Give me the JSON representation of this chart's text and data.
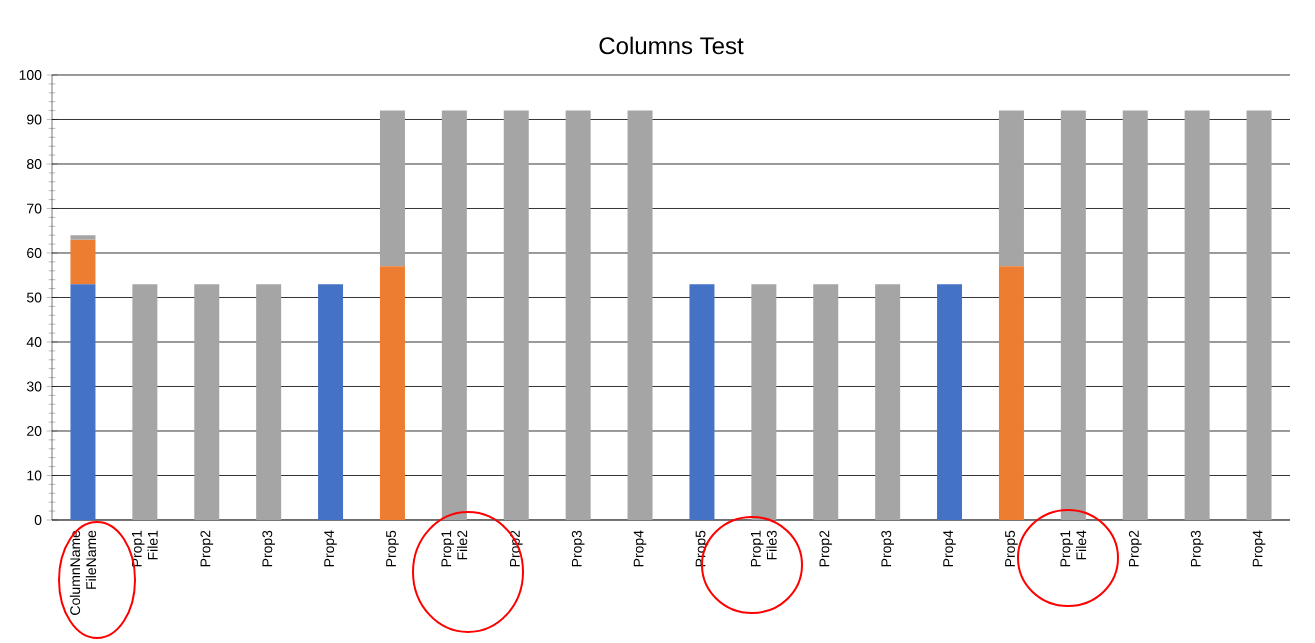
{
  "chart_data": {
    "type": "bar",
    "title": "Columns Test",
    "stacked": true,
    "grid": "y",
    "categories": [
      "ColumnName FileName",
      "Prop1 File1",
      "Prop2",
      "Prop3",
      "Prop4",
      "Prop5",
      "Prop1 File2",
      "Prop2",
      "Prop3",
      "Prop4",
      "Prop5",
      "Prop1 File3",
      "Prop2",
      "Prop3",
      "Prop4",
      "Prop5",
      "Prop1 File4",
      "Prop2",
      "Prop3",
      "Prop4"
    ],
    "series": [
      {
        "color": "#4472c4",
        "values": [
          53,
          0,
          0,
          0,
          53,
          0,
          0,
          0,
          0,
          0,
          53,
          0,
          0,
          0,
          53,
          0,
          0,
          0,
          0,
          0
        ]
      },
      {
        "color": "#ed7d31",
        "values": [
          10,
          0,
          0,
          0,
          0,
          57,
          0,
          0,
          0,
          0,
          0,
          0,
          0,
          0,
          0,
          57,
          0,
          0,
          0,
          0
        ]
      },
      {
        "color": "#a5a5a5",
        "values": [
          1,
          53,
          53,
          53,
          0,
          35,
          92,
          92,
          92,
          92,
          0,
          53,
          53,
          53,
          0,
          35,
          92,
          92,
          92,
          92
        ]
      }
    ],
    "ylim": [
      0,
      100
    ],
    "yticks": [
      0,
      10,
      20,
      30,
      40,
      50,
      60,
      70,
      80,
      90,
      100
    ]
  }
}
